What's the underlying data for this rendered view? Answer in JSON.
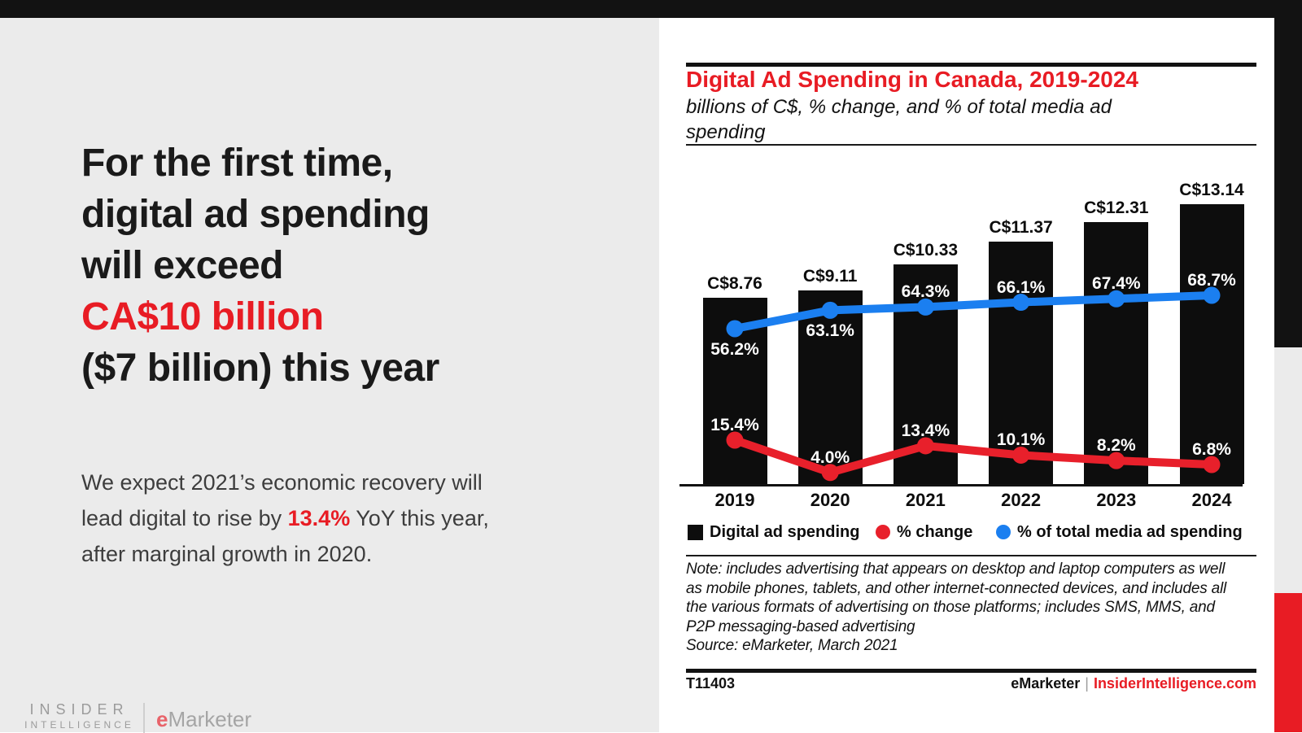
{
  "left_panel": {
    "headline": {
      "lines": [
        "For the first time,",
        "digital ad spending",
        "will exceed",
        "CA$10 billion",
        "($7 billion) this year"
      ]
    },
    "paragraph": {
      "line1": "We expect 2021’s economic recovery will",
      "line2_pre": "lead digital to rise by ",
      "line2_red": "13.4%",
      "line2_post": " YoY this year,",
      "line3": "after marginal growth in 2020."
    },
    "logos": {
      "insider_top": "INSIDER",
      "insider_bottom": "INTELLIGENCE",
      "emarketer_e": "e",
      "emarketer_rest": "Marketer"
    }
  },
  "chart_panel": {
    "title": "Digital Ad Spending in Canada, 2019-2024",
    "subtitle_line1": "billions of C$, % change, and % of total media ad",
    "subtitle_line2": "spending",
    "legend": [
      {
        "label": "Digital ad spending",
        "swatch": "black-square"
      },
      {
        "label": "% change",
        "swatch": "red-dot"
      },
      {
        "label": "% of total media ad spending",
        "swatch": "blue-dot"
      }
    ],
    "note_lines": [
      "Note: includes advertising that appears on desktop and laptop computers as well",
      "as mobile phones, tablets, and other internet-connected devices, and includes all",
      "the various formats of advertising on those platforms; includes SMS, MMS, and",
      "P2P messaging-based advertising",
      "Source: eMarketer, March 2021"
    ],
    "footer": {
      "id": "T11403",
      "brand": "eMarketer",
      "divider": "|",
      "site": "InsiderIntelligence.com"
    }
  },
  "chart_data": {
    "type": "bar+line",
    "title": "Digital Ad Spending in Canada, 2019-2024",
    "subtitle": "billions of C$, % change, and % of total media ad spending",
    "categories": [
      "2019",
      "2020",
      "2021",
      "2022",
      "2023",
      "2024"
    ],
    "series": [
      {
        "name": "Digital ad spending",
        "type": "bar",
        "unit": "billions of C$",
        "color": "#0d0d0d",
        "values": [
          8.76,
          9.11,
          10.33,
          11.37,
          12.31,
          13.14
        ],
        "labels": [
          "C$8.76",
          "C$9.11",
          "C$10.33",
          "C$11.37",
          "C$12.31",
          "C$13.14"
        ]
      },
      {
        "name": "% change",
        "type": "line",
        "unit": "%",
        "color": "#e8202b",
        "values": [
          15.4,
          4.0,
          13.4,
          10.1,
          8.2,
          6.8
        ],
        "labels": [
          "15.4%",
          "4.0%",
          "13.4%",
          "10.1%",
          "8.2%",
          "6.8%"
        ]
      },
      {
        "name": "% of total media ad spending",
        "type": "line",
        "unit": "%",
        "color": "#1b7ff0",
        "values": [
          56.2,
          63.1,
          64.3,
          66.1,
          67.4,
          68.7
        ],
        "labels": [
          "56.2%",
          "63.1%",
          "64.3%",
          "66.1%",
          "67.4%",
          "68.7%"
        ]
      }
    ],
    "legend_position": "bottom",
    "grid": false
  },
  "colors": {
    "accent_red": "#e81c24",
    "line_red": "#e8202b",
    "line_blue": "#1b7ff0",
    "bar_black": "#0d0d0d",
    "panel_gray": "#ebebeb",
    "top_bar_black": "#121212",
    "paragraph_gray": "#3d3d3d",
    "logo_gray": "#9b9b9b"
  }
}
